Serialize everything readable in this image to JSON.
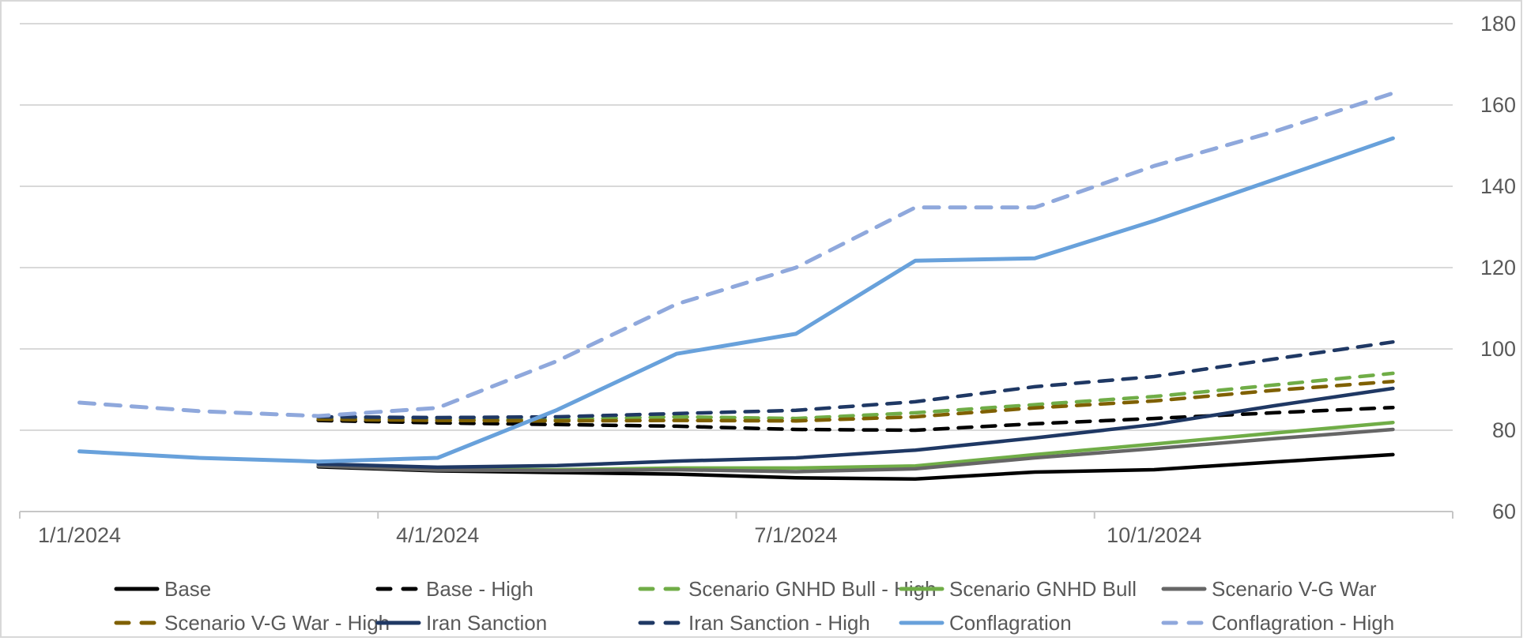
{
  "chart_data": {
    "type": "line",
    "title": "",
    "x_categories": [
      "1/1/2024",
      "2/1/2024",
      "3/1/2024",
      "4/1/2024",
      "5/1/2024",
      "6/1/2024",
      "7/1/2024",
      "8/1/2024",
      "9/1/2024",
      "10/1/2024",
      "11/1/2024",
      "12/1/2024"
    ],
    "x_tick_labels": [
      "1/1/2024",
      "4/1/2024",
      "7/1/2024",
      "10/1/2024"
    ],
    "x_tick_month_indices": [
      0,
      3,
      6,
      9
    ],
    "y_axis": {
      "side": "right",
      "min": 60,
      "max": 180,
      "step": 20,
      "tick_labels": [
        "180",
        "160",
        "140",
        "120",
        "100",
        "80",
        "60"
      ]
    },
    "grid": "horizontal",
    "legend_position": "bottom",
    "series": [
      {
        "name": "Base",
        "color": "#000000",
        "dash": false,
        "values": [
          null,
          null,
          71.0,
          70.0,
          69.6,
          69.2,
          68.3,
          68.0,
          69.7,
          70.3,
          72.2,
          74.0
        ]
      },
      {
        "name": "Base - High",
        "color": "#000000",
        "dash": true,
        "values": [
          null,
          null,
          82.4,
          81.8,
          81.4,
          81.0,
          80.2,
          80.0,
          81.6,
          82.9,
          84.3,
          85.6
        ]
      },
      {
        "name": "Scenario GNHD Bull - High",
        "color": "#70AD47",
        "dash": true,
        "values": [
          null,
          null,
          83.0,
          82.8,
          82.6,
          83.3,
          82.9,
          84.3,
          86.3,
          88.3,
          91.1,
          94.0
        ]
      },
      {
        "name": "Scenario GNHD Bull",
        "color": "#70AD47",
        "dash": false,
        "values": [
          null,
          null,
          71.3,
          70.4,
          70.3,
          70.7,
          70.7,
          71.2,
          74.0,
          76.6,
          79.3,
          81.9
        ]
      },
      {
        "name": "Scenario V-G War",
        "color": "#666666",
        "dash": false,
        "values": [
          null,
          null,
          71.2,
          70.2,
          70.1,
          70.3,
          69.8,
          70.5,
          73.2,
          75.5,
          77.9,
          80.2
        ]
      },
      {
        "name": "Scenario V-G War - High",
        "color": "#7F6000",
        "dash": true,
        "values": [
          null,
          null,
          82.7,
          82.4,
          82.3,
          82.4,
          82.3,
          83.3,
          85.5,
          87.2,
          89.8,
          92.0
        ]
      },
      {
        "name": "Iran Sanction",
        "color": "#1F3864",
        "dash": false,
        "values": [
          null,
          null,
          71.7,
          70.9,
          71.3,
          72.4,
          73.2,
          75.1,
          78.1,
          81.4,
          86.0,
          90.3
        ]
      },
      {
        "name": "Iran Sanction - High",
        "color": "#1F3864",
        "dash": true,
        "values": [
          null,
          null,
          83.3,
          83.1,
          83.3,
          84.1,
          84.9,
          87.0,
          90.7,
          93.2,
          97.5,
          101.7
        ]
      },
      {
        "name": "Conflagration",
        "color": "#68A1DB",
        "dash": false,
        "values": [
          74.8,
          73.2,
          72.3,
          73.2,
          85.0,
          98.8,
          103.7,
          121.7,
          122.3,
          131.5,
          141.6,
          151.8
        ]
      },
      {
        "name": "Conflagration - High",
        "color": "#8FA8DC",
        "dash": true,
        "values": [
          86.8,
          84.7,
          83.5,
          85.5,
          97.0,
          111.0,
          120.0,
          134.8,
          134.8,
          145.0,
          153.4,
          162.9
        ]
      }
    ]
  },
  "legend": {
    "rows": [
      [
        "Base",
        "Base - High",
        "Scenario GNHD Bull - High",
        "Scenario GNHD Bull",
        "Scenario V-G War"
      ],
      [
        "Scenario V-G War - High",
        "Iran Sanction",
        "Iran Sanction - High",
        "Conflagration",
        "Conflagration - High"
      ]
    ]
  },
  "style_colors": {
    "gridline": "#D9D9D9",
    "axis_line": "#C6C6C6",
    "axis_text": "#595959",
    "frame_border": "#D8D8D8",
    "background": "#FFFFFF"
  }
}
